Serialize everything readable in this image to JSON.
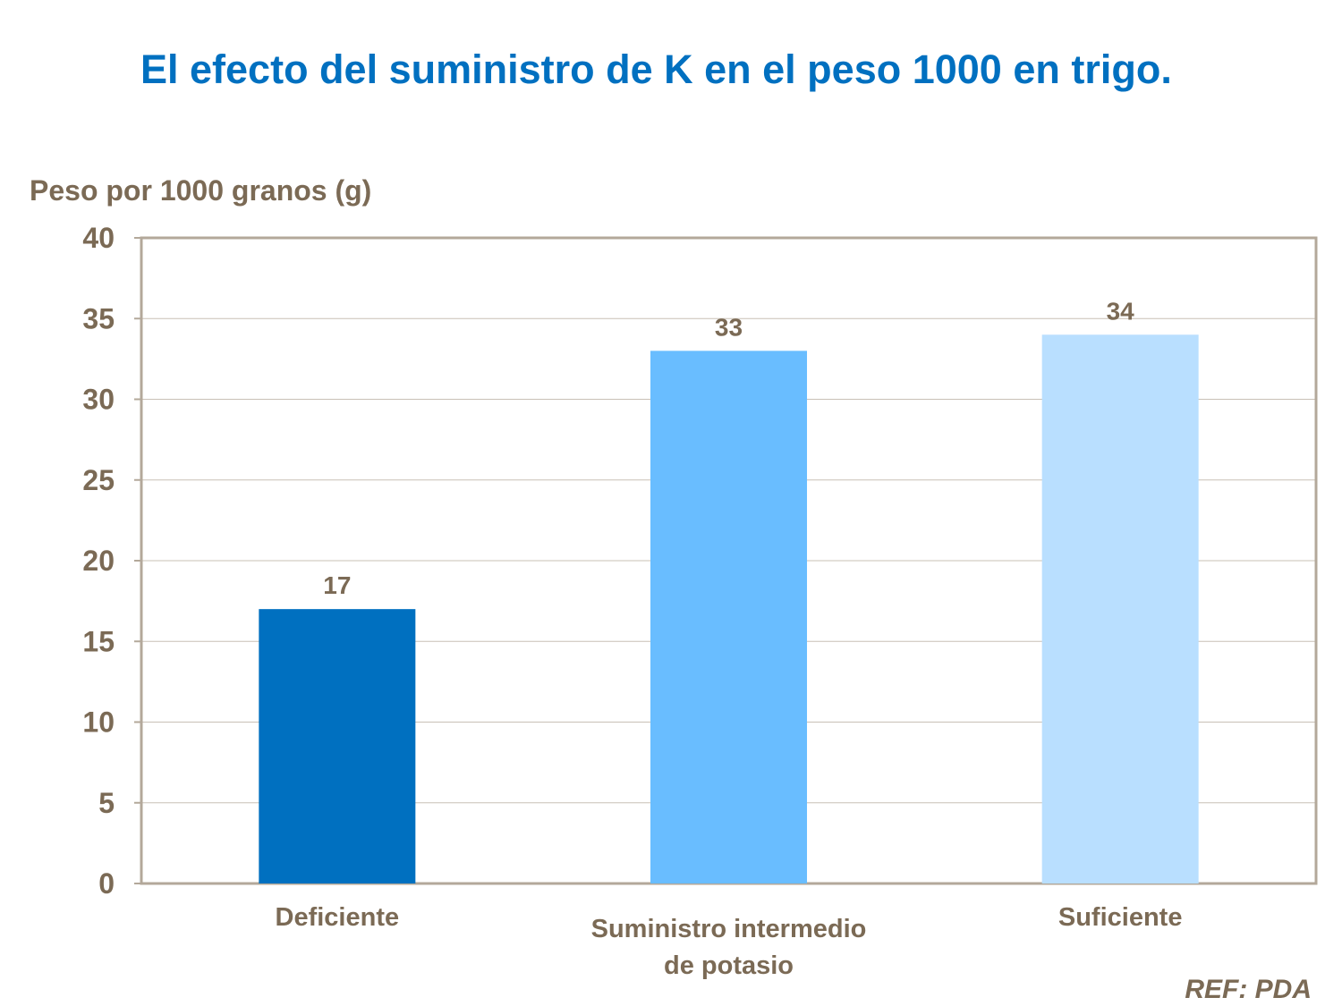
{
  "chart_data": {
    "type": "bar",
    "title": "El efecto del suministro de K en el peso 1000 en trigo.",
    "ylabel": "Peso por 1000 granos (g)",
    "xlabel": "",
    "categories": [
      "Deficiente",
      "Suministro  intermedio de potasio",
      "Suficiente"
    ],
    "category_lines": [
      [
        "Deficiente"
      ],
      [
        "Suministro  intermedio",
        "de potasio"
      ],
      [
        "Suficiente"
      ]
    ],
    "values": [
      17,
      33,
      34
    ],
    "data_labels": [
      "17",
      "33",
      "34"
    ],
    "colors": [
      "#0070C0",
      "#69BDFF",
      "#B9DFFF"
    ],
    "ylim": [
      0,
      40
    ],
    "yticks": [
      0,
      5,
      10,
      15,
      20,
      25,
      30,
      35,
      40
    ],
    "grid": true,
    "legend": "none"
  },
  "reference": "REF: PDA"
}
